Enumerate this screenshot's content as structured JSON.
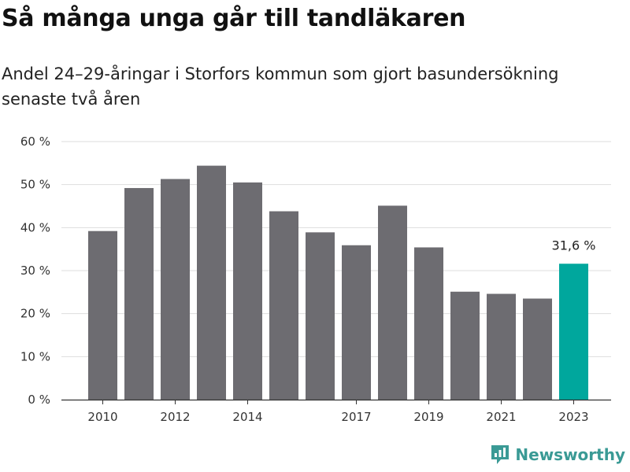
{
  "title": "Så många unga går till tandläkaren",
  "subtitle": "Andel 24–29-åringar i Storfors kommun som gjort basundersökning senaste två åren",
  "brand": {
    "name": "Newsworthy",
    "icon": "newsworthy-logo-icon"
  },
  "colors": {
    "bar": "#6d6c71",
    "highlight": "#00a79d",
    "grid": "#dddddd",
    "axis": "#333333",
    "brand": "#3a9a95"
  },
  "chart_data": {
    "type": "bar",
    "categories": [
      "2010",
      "2011",
      "2012",
      "2013",
      "2014",
      "2015",
      "2016",
      "2017",
      "2018",
      "2019",
      "2020",
      "2021",
      "2022",
      "2023"
    ],
    "values": [
      39.2,
      49.2,
      51.3,
      54.4,
      50.5,
      43.8,
      38.9,
      35.9,
      45.1,
      35.4,
      25.1,
      24.6,
      23.5,
      31.6
    ],
    "highlight_index": 13,
    "data_labels": [
      {
        "index": 13,
        "text": "31,6 %"
      }
    ],
    "x_tick_labels": [
      {
        "index": 0,
        "text": "2010"
      },
      {
        "index": 2,
        "text": "2012"
      },
      {
        "index": 4,
        "text": "2014"
      },
      {
        "index": 7,
        "text": "2017"
      },
      {
        "index": 9,
        "text": "2019"
      },
      {
        "index": 11,
        "text": "2021"
      },
      {
        "index": 13,
        "text": "2023"
      }
    ],
    "y_ticks": [
      {
        "value": 0,
        "text": "0 %"
      },
      {
        "value": 10,
        "text": "10 %"
      },
      {
        "value": 20,
        "text": "20 %"
      },
      {
        "value": 30,
        "text": "30 %"
      },
      {
        "value": 40,
        "text": "40 %"
      },
      {
        "value": 50,
        "text": "50 %"
      },
      {
        "value": 60,
        "text": "60 %"
      }
    ],
    "ylim": [
      0,
      60
    ],
    "grid": true,
    "legend": "none"
  }
}
